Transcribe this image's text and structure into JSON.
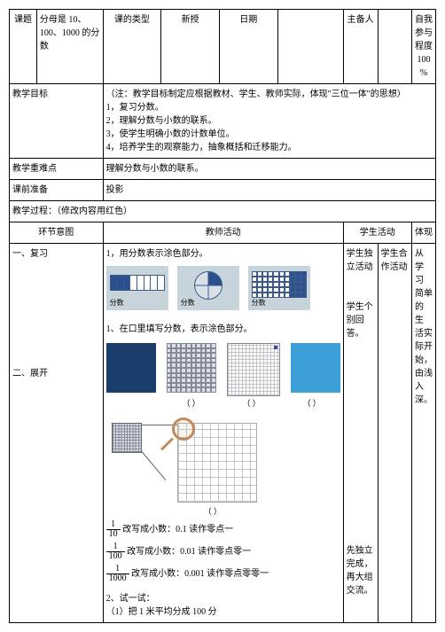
{
  "header": {
    "keti_label": "课题",
    "keti_text": "分母是 10、100、1000 的分数",
    "leixing_label": "课的类型",
    "leixing_val": "新授",
    "riqi_label": "日期",
    "zhubei_label": "主备人",
    "canyu_label": "自我参与程度 100  %"
  },
  "goals": {
    "label": "教学目标",
    "note": "（注：教学目标制定应根据教材、学生、教师实际，体现\"三位一体\"的思想）",
    "g1": "1，复习分数。",
    "g2": "2，理解分数与小数的联系。",
    "g3": "3，使学生明确小数的计数单位。",
    "g4": "4，培养学生的观察能力，抽象概括和迁移能力。"
  },
  "difficult": {
    "label": "教学重难点",
    "text": "理解分数与小数的联系。"
  },
  "prep": {
    "label": "课前准备",
    "text": "投影"
  },
  "process_note": "教学过程：（修改内容用红色）",
  "cols": {
    "c1": "环节意图",
    "c2": "教师活动",
    "c3": "学生活动",
    "c4": "体现"
  },
  "sec1": {
    "title": "一、复习",
    "t1": "1，用分数表示涂色部分。",
    "fig_lbl": "分数",
    "t2": "1、在口里填写分数，表示涂色部分。",
    "paren": "（    ）",
    "m1_a": "改写成小数：0.1   读作零点一",
    "m2_a": "改写成小数：0.01   读作零点零一",
    "m3_a": "改写成小数：0.001   读作零点零零一",
    "t3": "2、试一试：",
    "t4": "（1）把 1 米平均分成 100 分"
  },
  "sec2": {
    "title": "二、展开"
  },
  "stu": {
    "s1": "学生独立活动",
    "s2": "学生个别回答。",
    "s3": "先独立完成，再大组交流。",
    "s4": "学生合作活动"
  },
  "ref": {
    "text": "从 学 习 简单 的 生 活实际开始，由浅入深。"
  },
  "frac": {
    "n1": "1",
    "d1": "10",
    "n2": "1",
    "d2": "100",
    "n3": "1",
    "d3": "1000"
  }
}
